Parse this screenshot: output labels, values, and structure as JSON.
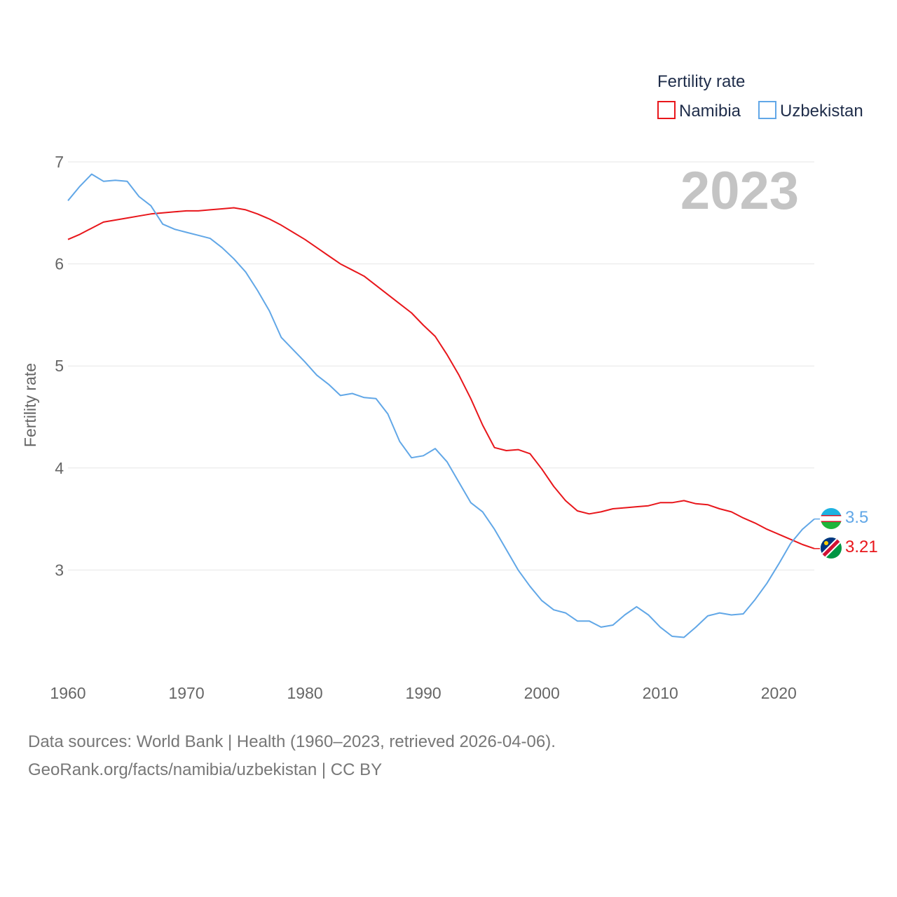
{
  "chart_data": {
    "type": "line",
    "title": "Fertility rate",
    "ylabel": "Fertility rate",
    "xlabel": "",
    "highlight_year": "2023",
    "xlim": [
      1960,
      2023
    ],
    "ylim": [
      2.0,
      7.0
    ],
    "x_ticks": [
      1960,
      1970,
      1980,
      1990,
      2000,
      2010,
      2020
    ],
    "y_ticks": [
      3,
      4,
      5,
      6,
      7
    ],
    "legend_position": "top-right",
    "grid": true,
    "x": [
      1960,
      1961,
      1962,
      1963,
      1964,
      1965,
      1966,
      1967,
      1968,
      1969,
      1970,
      1971,
      1972,
      1973,
      1974,
      1975,
      1976,
      1977,
      1978,
      1979,
      1980,
      1981,
      1982,
      1983,
      1984,
      1985,
      1986,
      1987,
      1988,
      1989,
      1990,
      1991,
      1992,
      1993,
      1994,
      1995,
      1996,
      1997,
      1998,
      1999,
      2000,
      2001,
      2002,
      2003,
      2004,
      2005,
      2006,
      2007,
      2008,
      2009,
      2010,
      2011,
      2012,
      2013,
      2014,
      2015,
      2016,
      2017,
      2018,
      2019,
      2020,
      2021,
      2022,
      2023
    ],
    "series": [
      {
        "name": "Namibia",
        "color": "#e8161b",
        "end_label": "3.21",
        "flag": "flag-namibia-icon",
        "values": [
          6.24,
          6.29,
          6.35,
          6.41,
          6.43,
          6.45,
          6.47,
          6.49,
          6.5,
          6.51,
          6.52,
          6.52,
          6.53,
          6.54,
          6.55,
          6.53,
          6.49,
          6.44,
          6.38,
          6.31,
          6.24,
          6.16,
          6.08,
          6.0,
          5.94,
          5.88,
          5.79,
          5.7,
          5.61,
          5.52,
          5.4,
          5.29,
          5.11,
          4.91,
          4.68,
          4.42,
          4.2,
          4.17,
          4.18,
          4.14,
          3.99,
          3.82,
          3.68,
          3.58,
          3.55,
          3.57,
          3.6,
          3.61,
          3.62,
          3.63,
          3.66,
          3.66,
          3.68,
          3.65,
          3.64,
          3.6,
          3.57,
          3.51,
          3.46,
          3.4,
          3.35,
          3.3,
          3.25,
          3.21
        ]
      },
      {
        "name": "Uzbekistan",
        "color": "#61a7e7",
        "end_label": "3.5",
        "flag": "flag-uzbekistan-icon",
        "values": [
          6.62,
          6.76,
          6.88,
          6.81,
          6.82,
          6.81,
          6.66,
          6.57,
          6.39,
          6.34,
          6.31,
          6.28,
          6.25,
          6.16,
          6.05,
          5.92,
          5.74,
          5.54,
          5.28,
          5.16,
          5.04,
          4.91,
          4.82,
          4.71,
          4.73,
          4.69,
          4.68,
          4.53,
          4.26,
          4.1,
          4.12,
          4.19,
          4.06,
          3.86,
          3.66,
          3.57,
          3.4,
          3.2,
          3.0,
          2.84,
          2.7,
          2.61,
          2.58,
          2.5,
          2.5,
          2.44,
          2.46,
          2.56,
          2.64,
          2.56,
          2.44,
          2.35,
          2.34,
          2.44,
          2.55,
          2.58,
          2.56,
          2.57,
          2.71,
          2.87,
          3.06,
          3.26,
          3.4,
          3.5
        ]
      }
    ]
  },
  "legend": {
    "title": "Fertility rate",
    "items": [
      "Namibia",
      "Uzbekistan"
    ]
  },
  "footer": {
    "line1": "Data sources: World Bank | Health (1960–2023, retrieved 2026-04-06).",
    "line2": "GeoRank.org/facts/namibia/uzbekistan | CC BY"
  },
  "colors": {
    "namibia": "#e8161b",
    "uzbekistan": "#61a7e7",
    "grid": "#e6e6e6",
    "year": "#c4c4c4"
  }
}
